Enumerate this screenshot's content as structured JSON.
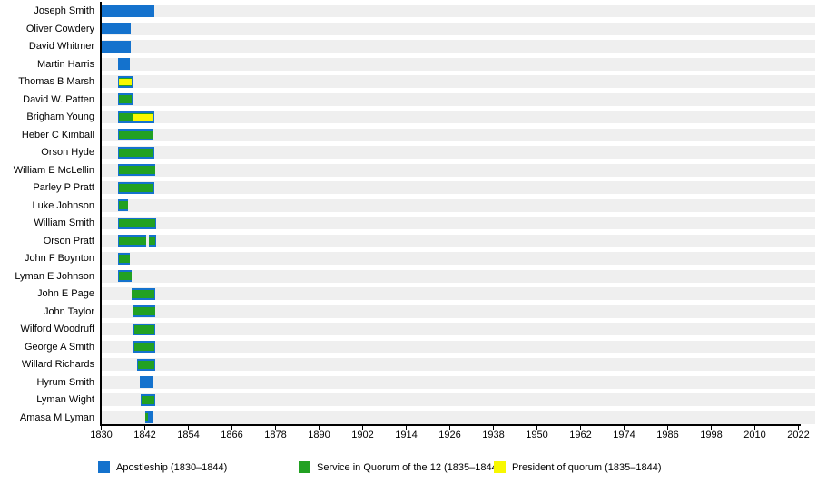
{
  "chart_data": {
    "type": "bar",
    "subtype": "timeline-gantt",
    "title": "",
    "x_axis": {
      "min": 1830,
      "max": 2022.6,
      "ticks": [
        1830,
        1842,
        1854,
        1866,
        1878,
        1890,
        1902,
        1914,
        1926,
        1938,
        1950,
        1962,
        1974,
        1986,
        1998,
        2010,
        2022
      ]
    },
    "legend": {
      "items": [
        {
          "key": "apostleship",
          "label": "Apostleship (1830–1844)",
          "color": "#1472cd"
        },
        {
          "key": "service",
          "label": "Service in Quorum of the 12 (1835–1844)",
          "color": "#22a122"
        },
        {
          "key": "president",
          "label": "President of quorum (1835–1844)",
          "color": "#f8f800"
        }
      ]
    },
    "colors": {
      "row_stripe": "#efefef",
      "axis": "#000000",
      "background": "#ffffff"
    },
    "rows": [
      {
        "name": "Joseph Smith",
        "apostleship": [
          [
            1830.0,
            1844.5
          ]
        ],
        "service": [],
        "president": []
      },
      {
        "name": "Oliver Cowdery",
        "apostleship": [
          [
            1830.0,
            1838.1
          ]
        ],
        "service": [],
        "president": []
      },
      {
        "name": "David Whitmer",
        "apostleship": [
          [
            1830.0,
            1838.1
          ]
        ],
        "service": [],
        "president": []
      },
      {
        "name": "Martin Harris",
        "apostleship": [
          [
            1834.6,
            1837.9
          ]
        ],
        "service": [],
        "president": []
      },
      {
        "name": "Thomas B Marsh",
        "apostleship": [
          [
            1834.6,
            1838.6
          ]
        ],
        "service": [
          [
            1834.75,
            1838.45
          ]
        ],
        "president": [
          [
            1834.9,
            1838.3
          ]
        ]
      },
      {
        "name": "David W. Patten",
        "apostleship": [
          [
            1834.6,
            1838.6
          ]
        ],
        "service": [
          [
            1834.75,
            1838.45
          ]
        ],
        "president": []
      },
      {
        "name": "Brigham Young",
        "apostleship": [
          [
            1834.6,
            1844.6
          ]
        ],
        "service": [
          [
            1834.75,
            1844.45
          ]
        ],
        "president": [
          [
            1838.7,
            1844.45
          ]
        ]
      },
      {
        "name": "Heber C Kimball",
        "apostleship": [
          [
            1834.6,
            1844.5
          ]
        ],
        "service": [
          [
            1834.75,
            1844.35
          ]
        ],
        "president": []
      },
      {
        "name": "Orson Hyde",
        "apostleship": [
          [
            1834.6,
            1844.6
          ]
        ],
        "service": [
          [
            1834.75,
            1844.45
          ]
        ],
        "president": []
      },
      {
        "name": "William E McLellin",
        "apostleship": [
          [
            1834.6,
            1844.9
          ]
        ],
        "service": [
          [
            1834.75,
            1844.75
          ]
        ],
        "president": []
      },
      {
        "name": "Parley P Pratt",
        "apostleship": [
          [
            1834.6,
            1844.6
          ]
        ],
        "service": [
          [
            1834.75,
            1844.45
          ]
        ],
        "president": []
      },
      {
        "name": "Luke Johnson",
        "apostleship": [
          [
            1834.6,
            1837.4
          ]
        ],
        "service": [
          [
            1834.75,
            1837.25
          ]
        ],
        "president": []
      },
      {
        "name": "William Smith",
        "apostleship": [
          [
            1834.6,
            1845.1
          ]
        ],
        "service": [
          [
            1834.75,
            1844.95
          ]
        ],
        "president": []
      },
      {
        "name": "Orson Pratt",
        "apostleship": [
          [
            1834.6,
            1842.4
          ],
          [
            1843.1,
            1845.1
          ]
        ],
        "service": [
          [
            1834.75,
            1842.3
          ],
          [
            1843.2,
            1844.95
          ]
        ],
        "president": []
      },
      {
        "name": "John F Boynton",
        "apostleship": [
          [
            1834.6,
            1837.9
          ]
        ],
        "service": [
          [
            1834.75,
            1837.75
          ]
        ],
        "president": []
      },
      {
        "name": "Lyman E Johnson",
        "apostleship": [
          [
            1834.6,
            1838.4
          ]
        ],
        "service": [
          [
            1834.75,
            1838.25
          ]
        ],
        "president": []
      },
      {
        "name": "John E Page",
        "apostleship": [
          [
            1838.3,
            1844.9
          ]
        ],
        "service": [
          [
            1838.45,
            1844.75
          ]
        ],
        "president": []
      },
      {
        "name": "John Taylor",
        "apostleship": [
          [
            1838.6,
            1844.9
          ]
        ],
        "service": [
          [
            1838.75,
            1844.75
          ]
        ],
        "president": []
      },
      {
        "name": "Wilford Woodruff",
        "apostleship": [
          [
            1838.9,
            1844.9
          ]
        ],
        "service": [
          [
            1839.05,
            1844.75
          ]
        ],
        "president": []
      },
      {
        "name": "George A Smith",
        "apostleship": [
          [
            1838.9,
            1844.9
          ]
        ],
        "service": [
          [
            1839.05,
            1844.75
          ]
        ],
        "president": []
      },
      {
        "name": "Willard Richards",
        "apostleship": [
          [
            1839.9,
            1844.9
          ]
        ],
        "service": [
          [
            1840.05,
            1844.75
          ]
        ],
        "president": []
      },
      {
        "name": "Hyrum Smith",
        "apostleship": [
          [
            1840.6,
            1844.2
          ]
        ],
        "service": [],
        "president": []
      },
      {
        "name": "Lyman Wight",
        "apostleship": [
          [
            1840.9,
            1844.9
          ]
        ],
        "service": [
          [
            1841.05,
            1844.75
          ]
        ],
        "president": []
      },
      {
        "name": "Amasa M Lyman",
        "apostleship": [
          [
            1842.0,
            1844.4
          ]
        ],
        "service": [
          [
            1842.1,
            1842.95
          ]
        ],
        "president": []
      }
    ]
  }
}
